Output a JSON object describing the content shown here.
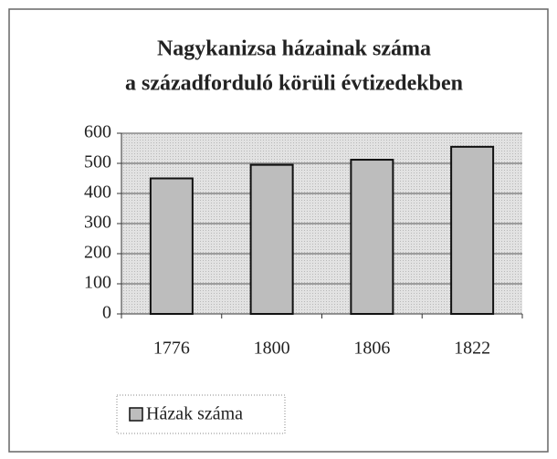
{
  "chart_data": {
    "type": "bar",
    "title": [
      "Nagykanizsa házainak száma",
      "a századforduló körüli évtizedekben"
    ],
    "categories": [
      "1776",
      "1800",
      "1806",
      "1822"
    ],
    "series": [
      {
        "name": "Házak száma",
        "color": "#bdbdbd",
        "values": [
          450,
          495,
          512,
          555
        ]
      }
    ],
    "ylim": [
      0,
      600
    ],
    "yticks": [
      0,
      100,
      200,
      300,
      400,
      500,
      600
    ],
    "grid": true,
    "legend": "bottom-left"
  }
}
